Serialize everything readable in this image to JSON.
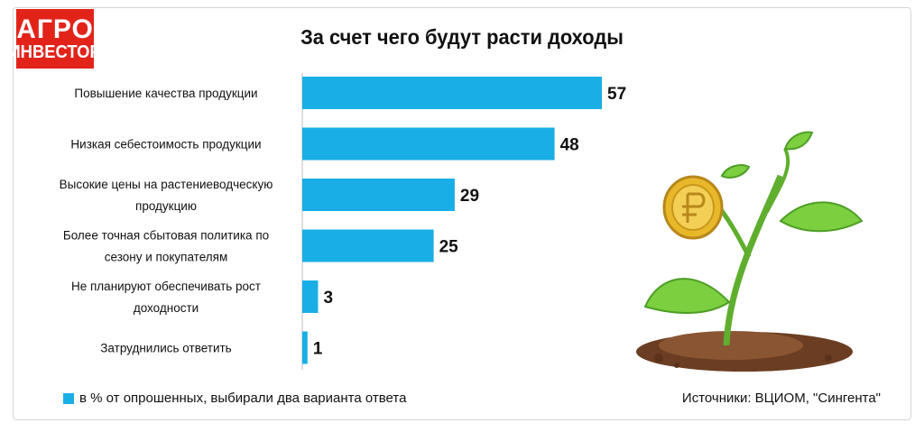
{
  "logo": {
    "line1": "АГРО",
    "line2": "ИНВЕСТОР"
  },
  "title": "За счет чего будут расти доходы",
  "legend": "в % от опрошенных, выбирали два варианта ответа",
  "source": "Источники: ВЦИОМ, \"Сингента\"",
  "colors": {
    "bar": "#19aee6",
    "logo_bg": "#e2231a",
    "leaf": "#6cc43d",
    "soil": "#7a4a2a",
    "coin": "#e8b82a"
  },
  "illustration": {
    "icon": "plant-with-coin-icon"
  },
  "chart_data": {
    "type": "bar",
    "orientation": "horizontal",
    "title": "За счет чего будут расти доходы",
    "categories": [
      [
        "Повышение качества продукции"
      ],
      [
        "Низкая себестоимость продукции"
      ],
      [
        "Высокие цены на растениеводческую",
        "продукцию"
      ],
      [
        "Более точная сбытовая политика по",
        "сезону и покупателям"
      ],
      [
        "Не планируют обеспечивать рост",
        "доходности"
      ],
      [
        "Затруднились ответить"
      ]
    ],
    "values": [
      57,
      48,
      29,
      25,
      3,
      1
    ],
    "value_labels": [
      "57",
      "48",
      "29",
      "25",
      "3",
      "1"
    ],
    "xlim": [
      0,
      57
    ],
    "grid": false,
    "legend_position": "bottom-left"
  }
}
